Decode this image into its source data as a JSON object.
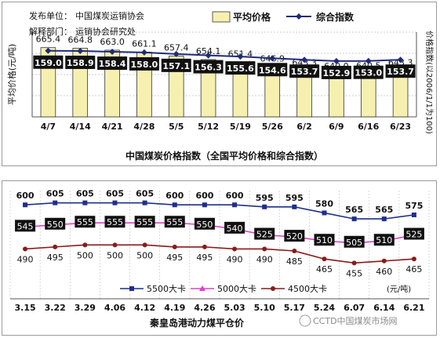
{
  "chart_data": [
    {
      "type": "bar",
      "title": "中国煤炭价格指数（全国平均价格和综合指数）",
      "publisher_label": "发布单位：",
      "publisher": "中国煤炭运销协会",
      "interpreter_label": "解释部门：",
      "interpreter": "运销协会研究处",
      "ylabel": "平均价格(元/吨)",
      "y2label": "价格指数(以2006/1/1为100)",
      "categories": [
        "4/7",
        "4/14",
        "4/21",
        "4/28",
        "5/5",
        "5/12",
        "5/19",
        "5/26",
        "6/2",
        "6/9",
        "6/16",
        "6/23"
      ],
      "series": [
        {
          "name": "平均价格",
          "type": "bar",
          "color": "#f6f0b0",
          "values": [
            665.4,
            664.8,
            663.0,
            661.1,
            657.4,
            654.1,
            651.4,
            646.9,
            643.3,
            640.0,
            640.5,
            643.3
          ]
        },
        {
          "name": "综合指数",
          "type": "line",
          "color": "#1f2b7a",
          "values": [
            159.0,
            158.9,
            158.4,
            158.0,
            157.1,
            156.3,
            155.6,
            154.6,
            153.7,
            152.9,
            153.0,
            153.7
          ]
        }
      ],
      "grid": true,
      "legend": "top-right"
    },
    {
      "type": "line",
      "title": "秦皇岛港动力煤平仓价",
      "unit": "(元/吨)",
      "categories": [
        "3.15",
        "3.22",
        "3.29",
        "4.06",
        "4.12",
        "4.19",
        "4.26",
        "5.03",
        "5.10",
        "5.17",
        "5.24",
        "6.07",
        "6.14",
        "6.21"
      ],
      "series": [
        {
          "name": "5500大卡",
          "color": "#1f2f8c",
          "marker": "square",
          "values": [
            600,
            605,
            605,
            605,
            605,
            600,
            600,
            600,
            595,
            595,
            580,
            565,
            565,
            575
          ]
        },
        {
          "name": "5000大卡",
          "color": "#e040c8",
          "marker": "triangle",
          "values": [
            545,
            550,
            555,
            555,
            555,
            555,
            550,
            540,
            525,
            520,
            510,
            505,
            510,
            525
          ]
        },
        {
          "name": "4500大卡",
          "color": "#8b1a1a",
          "marker": "circle",
          "values": [
            490,
            495,
            500,
            500,
            500,
            495,
            495,
            490,
            490,
            485,
            465,
            455,
            460,
            465
          ]
        }
      ],
      "grid": true,
      "legend": "bottom"
    }
  ],
  "watermark": "CCTD中国煤炭市场网",
  "colors": {
    "panel_border": "#9a9a9a",
    "grid": "#bfbfbf",
    "label_box": "#111111",
    "label_text": "#ffffff"
  }
}
